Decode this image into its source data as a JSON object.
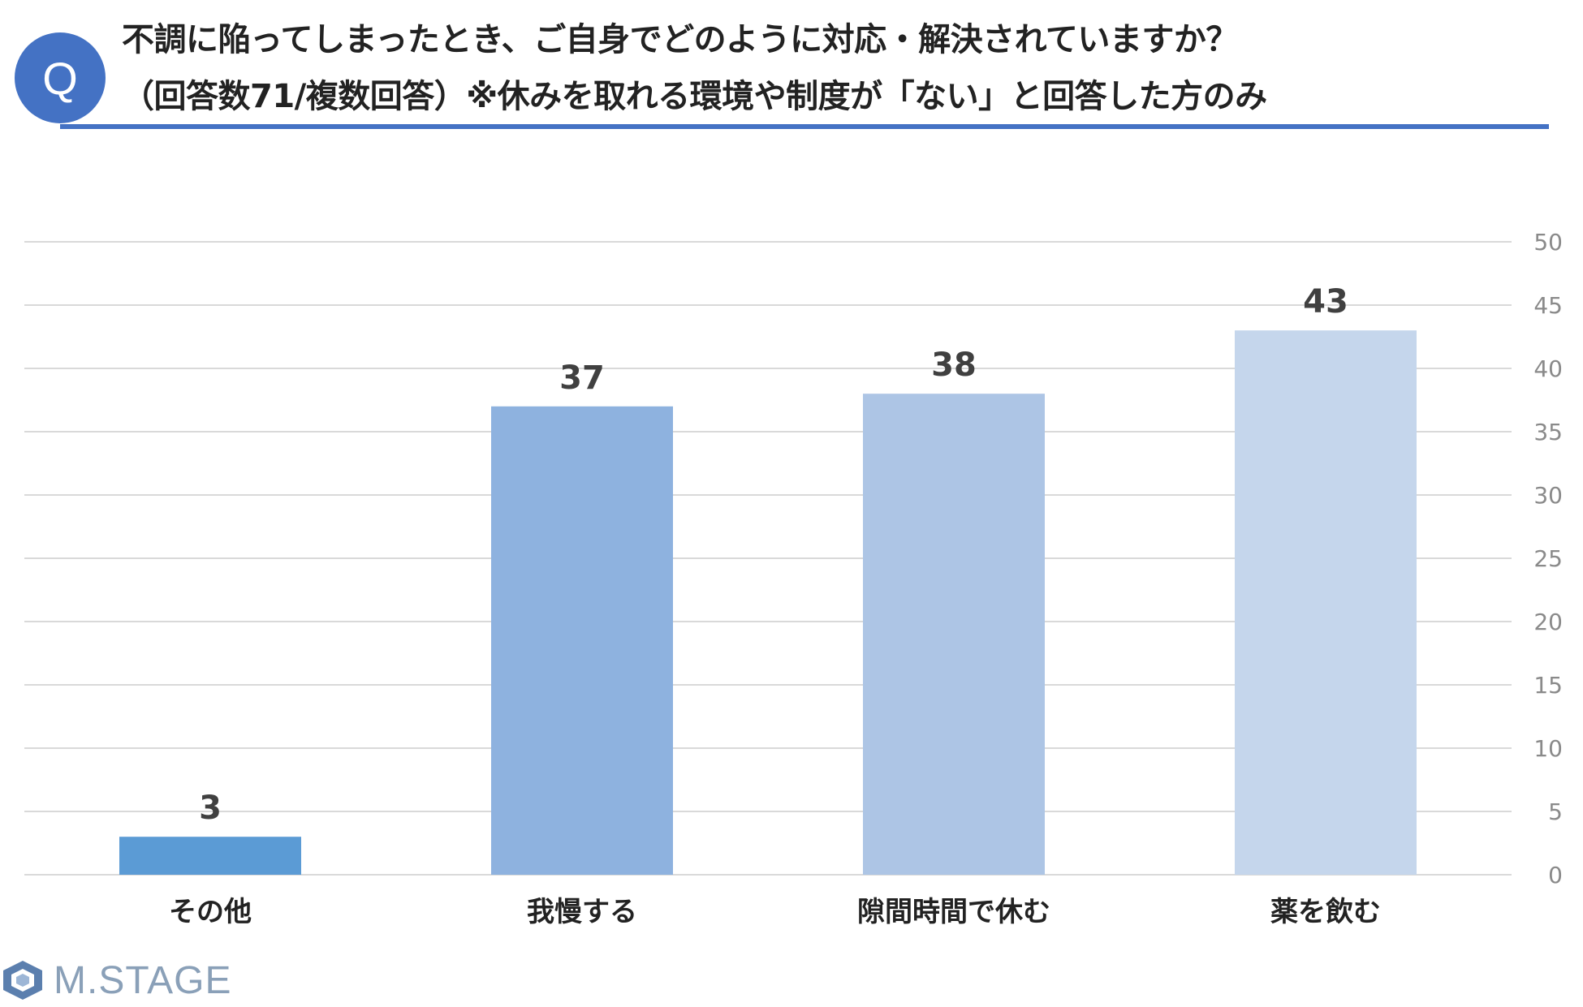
{
  "question": {
    "badge": "Q",
    "title_line1": "不調に陥ってしまったとき、ご自身でどのように対応・解決されていますか？",
    "title_line2": "（回答数71/複数回答）※休みを取れる環境や制度が「ない」と回答した方のみ"
  },
  "brand": {
    "name": "M.STAGE"
  },
  "colors": {
    "accent": "#4472c4",
    "bars": [
      "#5b9bd5",
      "#8eb2df",
      "#adc5e5",
      "#c5d6ec"
    ],
    "grid": "#d9d9d9"
  },
  "chart_data": {
    "type": "bar",
    "categories": [
      "その他",
      "我慢する",
      "隙間時間で休む",
      "薬を飲む"
    ],
    "values": [
      3,
      37,
      38,
      43
    ],
    "ylim": [
      0,
      50
    ],
    "yticks": [
      0,
      5,
      10,
      15,
      20,
      25,
      30,
      35,
      40,
      45,
      50
    ],
    "yaxis_side": "right",
    "data_labels": true,
    "grid": true,
    "legend": "none"
  }
}
